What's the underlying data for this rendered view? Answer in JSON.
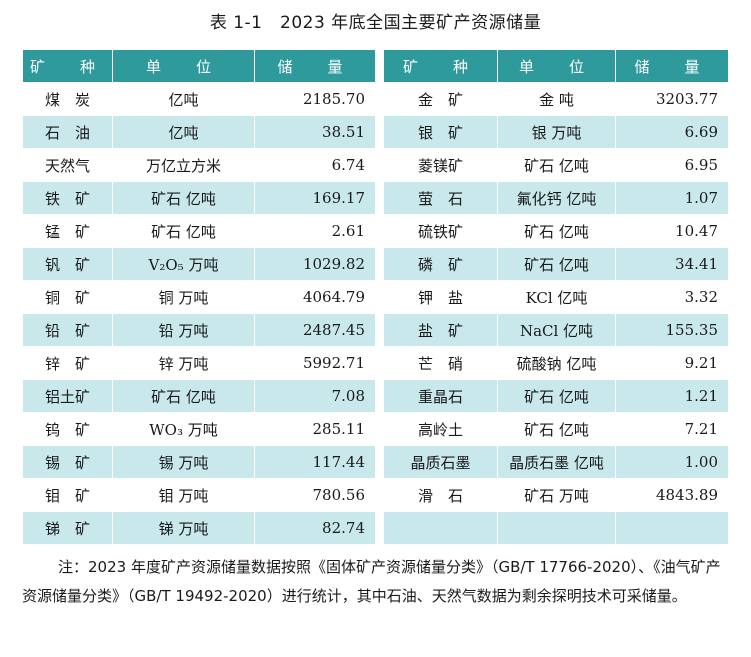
{
  "title": "表 1-1　2023 年底全国主要矿产资源储量",
  "headers": {
    "mineral": "矿　种",
    "unit": "单　位",
    "reserve": "储　量"
  },
  "left_rows": [
    {
      "mineral": "煤　炭",
      "unit": "亿吨",
      "reserve": "2185.70"
    },
    {
      "mineral": "石　油",
      "unit": "亿吨",
      "reserve": "38.51"
    },
    {
      "mineral": "天然气",
      "unit": "万亿立方米",
      "reserve": "6.74"
    },
    {
      "mineral": "铁　矿",
      "unit": "矿石 亿吨",
      "reserve": "169.17"
    },
    {
      "mineral": "锰　矿",
      "unit": "矿石 亿吨",
      "reserve": "2.61"
    },
    {
      "mineral": "钒　矿",
      "unit": "V₂O₅ 万吨",
      "reserve": "1029.82"
    },
    {
      "mineral": "铜　矿",
      "unit": "铜 万吨",
      "reserve": "4064.79"
    },
    {
      "mineral": "铅　矿",
      "unit": "铅 万吨",
      "reserve": "2487.45"
    },
    {
      "mineral": "锌　矿",
      "unit": "锌 万吨",
      "reserve": "5992.71"
    },
    {
      "mineral": "铝土矿",
      "unit": "矿石 亿吨",
      "reserve": "7.08"
    },
    {
      "mineral": "钨　矿",
      "unit": "WO₃ 万吨",
      "reserve": "285.11"
    },
    {
      "mineral": "锡　矿",
      "unit": "锡 万吨",
      "reserve": "117.44"
    },
    {
      "mineral": "钼　矿",
      "unit": "钼 万吨",
      "reserve": "780.56"
    },
    {
      "mineral": "锑　矿",
      "unit": "锑 万吨",
      "reserve": "82.74"
    }
  ],
  "right_rows": [
    {
      "mineral": "金　矿",
      "unit": "金 吨",
      "reserve": "3203.77"
    },
    {
      "mineral": "银　矿",
      "unit": "银 万吨",
      "reserve": "6.69"
    },
    {
      "mineral": "菱镁矿",
      "unit": "矿石 亿吨",
      "reserve": "6.95"
    },
    {
      "mineral": "萤　石",
      "unit": "氟化钙 亿吨",
      "reserve": "1.07"
    },
    {
      "mineral": "硫铁矿",
      "unit": "矿石 亿吨",
      "reserve": "10.47"
    },
    {
      "mineral": "磷　矿",
      "unit": "矿石 亿吨",
      "reserve": "34.41"
    },
    {
      "mineral": "钾　盐",
      "unit": "KCl 亿吨",
      "reserve": "3.32"
    },
    {
      "mineral": "盐　矿",
      "unit": "NaCl 亿吨",
      "reserve": "155.35"
    },
    {
      "mineral": "芒　硝",
      "unit": "硫酸钠 亿吨",
      "reserve": "9.21"
    },
    {
      "mineral": "重晶石",
      "unit": "矿石 亿吨",
      "reserve": "1.21"
    },
    {
      "mineral": "高岭土",
      "unit": "矿石 亿吨",
      "reserve": "7.21"
    },
    {
      "mineral": "晶质石墨",
      "unit": "晶质石墨 亿吨",
      "reserve": "1.00"
    },
    {
      "mineral": "滑　石",
      "unit": "矿石 万吨",
      "reserve": "4843.89"
    },
    {
      "mineral": "",
      "unit": "",
      "reserve": ""
    }
  ],
  "note": "注：2023 年度矿产资源储量数据按照《固体矿产资源储量分类》（GB/T 17766-2020）、《油气矿产资源储量分类》（GB/T 19492-2020）进行统计，其中石油、天然气数据为剩余探明技术可采储量。",
  "colors": {
    "header_bg": "#2e9a9c",
    "stripe_bg": "#c8e8ec"
  }
}
